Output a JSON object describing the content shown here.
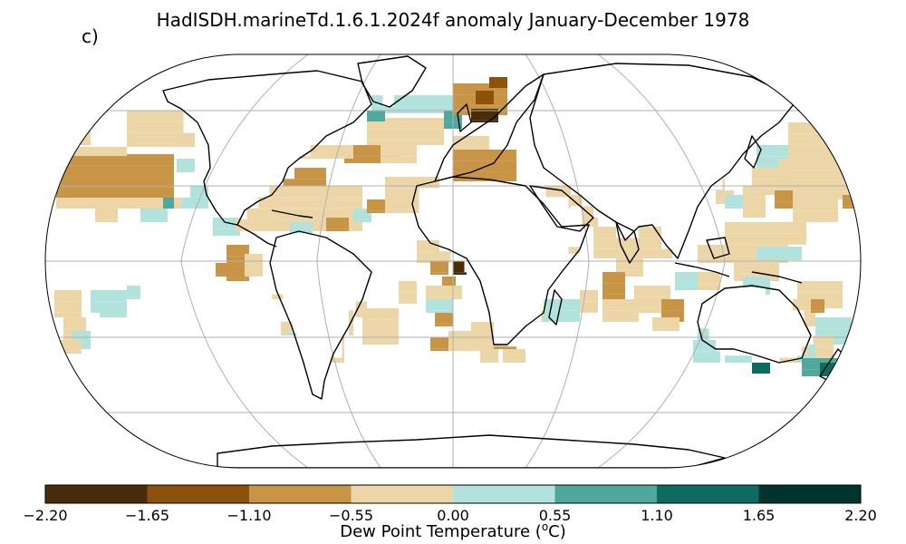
{
  "title": "HadISDH.marineTd.1.6.1.2024f anomaly January-December 1978",
  "panel_label": "c)",
  "colorbar": {
    "label_prefix": "Dew Point Temperature (",
    "label_sup": "o",
    "label_suffix": "C)",
    "ticks": [
      "−2.20",
      "−1.65",
      "−1.10",
      "−0.55",
      "0.00",
      "0.55",
      "1.10",
      "1.65",
      "2.20"
    ],
    "colors": [
      "#4a2c0a",
      "#8c510a",
      "#c89446",
      "#ecd6a8",
      "#b2e2dc",
      "#4fa89c",
      "#0d6b5f",
      "#00352d"
    ]
  },
  "map": {
    "projection": "Robinson",
    "ocean_color": "#ffffff",
    "grid_color": "#b0b0b0",
    "coast_color": "#000000"
  }
}
